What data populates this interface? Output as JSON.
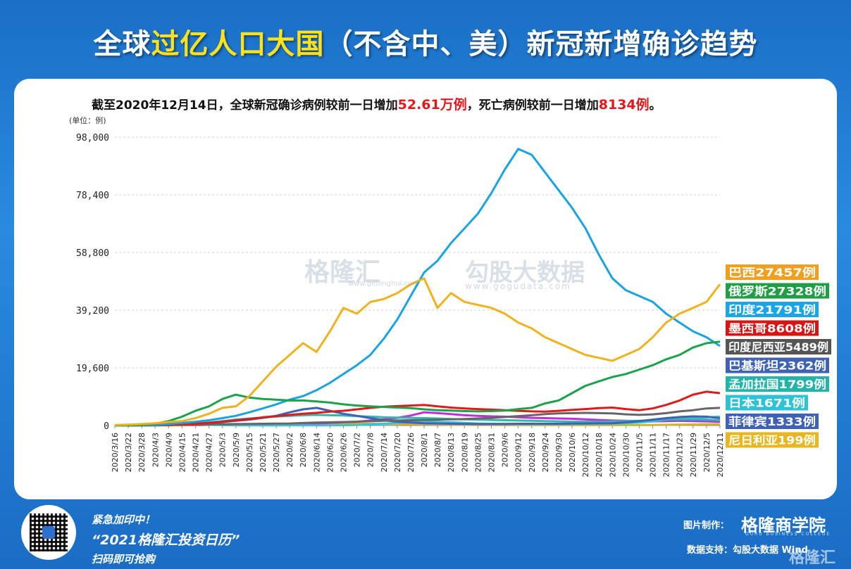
{
  "title": {
    "part1": "全球",
    "highlight": "过亿人口大国",
    "part2": "（不含中、美）新冠新增确诊趋势"
  },
  "summary": {
    "prefix": "截至2020年12月14日，全球新冠确诊病例较前一日增加",
    "cases": "52.61万例",
    "middle": "，死亡病例较前一日增加",
    "deaths": "8134例",
    "suffix": "。"
  },
  "unit_label": "(单位：例)",
  "watermarks": {
    "w1": "格隆汇",
    "w1_sub": "www.gelonghui.com",
    "w2": "勾股大数据",
    "w2_sub": "www.gogudata.com"
  },
  "footer": {
    "line1": "紧急加印中！",
    "line2": "“2021格隆汇投资日历”",
    "line3": "扫码即可抢购",
    "made_by": "图片制作：",
    "brand": "格隆商学院",
    "brand_sub": "GURU BUSINESS COLLEGE",
    "data_support": "数据支持：勾股大数据  Wind",
    "logo": "格隆汇"
  },
  "chart_data": {
    "type": "line",
    "ylim": [
      0,
      98000
    ],
    "yticks": [
      0,
      19600,
      39200,
      58800,
      78400,
      98000
    ],
    "ytick_labels": [
      "0",
      "19,600",
      "39,200",
      "58,800",
      "78,400",
      "98,000"
    ],
    "x_labels": [
      "2020/3/16",
      "2020/3/22",
      "2020/3/28",
      "2020/4/3",
      "2020/4/9",
      "2020/4/15",
      "2020/4/21",
      "2020/4/27",
      "2020/5/3",
      "2020/5/9",
      "2020/5/15",
      "2020/5/21",
      "2020/5/27",
      "2020/6/2",
      "2020/6/8",
      "2020/6/14",
      "2020/6/20",
      "2020/6/26",
      "2020/7/2",
      "2020/7/8",
      "2020/7/14",
      "2020/7/20",
      "2020/7/26",
      "2020/8/1",
      "2020/8/7",
      "2020/8/13",
      "2020/8/19",
      "2020/8/25",
      "2020/8/31",
      "2020/9/6",
      "2020/9/12",
      "2020/9/18",
      "2020/9/24",
      "2020/9/30",
      "2020/10/6",
      "2020/10/12",
      "2020/10/18",
      "2020/10/24",
      "2020/10/30",
      "2020/11/5",
      "2020/11/11",
      "2020/11/17",
      "2020/11/23",
      "2020/11/29",
      "2020/12/5",
      "2020/12/11"
    ],
    "series": [
      {
        "name": "巴西",
        "label": "巴西27457例",
        "color": "#f0b21c",
        "label_bg": "#f0a020",
        "key": "brazil",
        "values": [
          200,
          300,
          500,
          800,
          1200,
          1500,
          2500,
          4000,
          6000,
          6500,
          10000,
          15000,
          20000,
          24000,
          28000,
          25000,
          32000,
          40000,
          38000,
          42000,
          43000,
          45000,
          48000,
          50000,
          40000,
          45000,
          42000,
          41000,
          40000,
          38000,
          35000,
          33000,
          30000,
          28000,
          26000,
          24000,
          23000,
          22000,
          24000,
          26000,
          30000,
          35000,
          38000,
          40000,
          42000,
          48000
        ]
      },
      {
        "name": "俄罗斯",
        "label": "俄罗斯27328例",
        "color": "#1aa34a",
        "label_bg": "#1f9e45",
        "key": "russia",
        "values": [
          10,
          50,
          200,
          600,
          1500,
          3000,
          5000,
          6500,
          9000,
          10500,
          9500,
          9000,
          8800,
          8500,
          8500,
          8200,
          7800,
          7200,
          6800,
          6500,
          6300,
          6100,
          5900,
          5500,
          5200,
          5100,
          4900,
          4800,
          4900,
          5100,
          5600,
          6000,
          7500,
          8500,
          11000,
          13500,
          15000,
          16500,
          17500,
          19000,
          20500,
          22500,
          24000,
          26500,
          28000,
          28500
        ]
      },
      {
        "name": "印度",
        "label": "印度21791例",
        "color": "#1aa3e0",
        "label_bg": "#19a6e6",
        "key": "india",
        "values": [
          10,
          30,
          80,
          200,
          500,
          900,
          1300,
          1800,
          2500,
          3300,
          4500,
          5800,
          7200,
          8800,
          10000,
          12000,
          14500,
          17500,
          20500,
          24000,
          29500,
          36000,
          44000,
          52000,
          56000,
          62000,
          67000,
          72000,
          79000,
          87000,
          94000,
          92000,
          86000,
          80000,
          74000,
          67000,
          58000,
          50000,
          46000,
          44000,
          42000,
          38000,
          35000,
          32000,
          30000,
          27000
        ]
      },
      {
        "name": "墨西哥",
        "label": "墨西哥8608例",
        "color": "#e01919",
        "label_bg": "#d91414",
        "key": "mexico",
        "values": [
          10,
          20,
          50,
          100,
          200,
          400,
          600,
          900,
          1300,
          1800,
          2200,
          2800,
          3200,
          3600,
          4000,
          4300,
          4700,
          5000,
          5500,
          6000,
          6400,
          6600,
          6800,
          7000,
          6500,
          6100,
          5800,
          5600,
          5400,
          5200,
          5000,
          4800,
          4700,
          5000,
          5300,
          5600,
          5900,
          6100,
          5600,
          5200,
          5800,
          7000,
          8500,
          10500,
          11500,
          11000
        ]
      },
      {
        "name": "印度尼西亚",
        "label": "印度尼西亚5489例",
        "color": "#666666",
        "label_bg": "#555555",
        "key": "indonesia",
        "values": [
          10,
          40,
          80,
          120,
          200,
          300,
          350,
          400,
          450,
          500,
          550,
          600,
          650,
          700,
          850,
          1000,
          1100,
          1200,
          1300,
          1450,
          1600,
          1700,
          1800,
          1900,
          2000,
          2100,
          2200,
          2400,
          2600,
          2900,
          3200,
          3500,
          3900,
          4100,
          4200,
          4300,
          4200,
          4100,
          3800,
          3600,
          3800,
          4200,
          4800,
          5200,
          5800,
          6000
        ]
      },
      {
        "name": "巴基斯坦",
        "label": "巴基斯坦2362例",
        "color": "#3f62b8",
        "label_bg": "#3e62b6",
        "key": "pakistan",
        "values": [
          10,
          60,
          120,
          200,
          300,
          450,
          650,
          900,
          1200,
          1600,
          2000,
          2600,
          3300,
          4500,
          5500,
          6000,
          5000,
          4000,
          3300,
          2500,
          1800,
          1300,
          1000,
          800,
          700,
          600,
          550,
          500,
          500,
          550,
          600,
          600,
          600,
          600,
          650,
          700,
          750,
          800,
          1100,
          1500,
          2000,
          2500,
          2900,
          3100,
          3000,
          2500
        ]
      },
      {
        "name": "孟加拉国",
        "label": "孟加拉国1799例",
        "color": "#2fb8ae",
        "label_bg": "#22b3aa",
        "key": "bangladesh",
        "values": [
          5,
          10,
          30,
          80,
          200,
          450,
          700,
          1000,
          1500,
          2000,
          2400,
          2700,
          3000,
          3300,
          3500,
          3600,
          3500,
          3400,
          3200,
          3000,
          2800,
          2700,
          2600,
          2500,
          2400,
          2200,
          2100,
          2000,
          1900,
          1800,
          1700,
          1600,
          1500,
          1400,
          1300,
          1300,
          1300,
          1400,
          1500,
          1600,
          1800,
          2000,
          2100,
          2100,
          2000,
          1800
        ]
      },
      {
        "name": "日本",
        "label": "日本1671例",
        "color": "#36c6d3",
        "label_bg": "#2ec2d6",
        "key": "japan",
        "values": [
          40,
          50,
          80,
          150,
          350,
          500,
          400,
          250,
          150,
          80,
          40,
          30,
          30,
          40,
          50,
          60,
          70,
          100,
          200,
          400,
          600,
          900,
          1300,
          1500,
          1300,
          1100,
          900,
          700,
          600,
          550,
          500,
          480,
          500,
          550,
          550,
          600,
          650,
          700,
          800,
          1000,
          1400,
          2000,
          2300,
          2500,
          2800,
          3000
        ]
      },
      {
        "name": "菲律宾",
        "label": "菲律宾1333例",
        "color": "#c02ed9",
        "label_bg": "#3f62b6",
        "key": "philippines",
        "values": [
          10,
          30,
          80,
          150,
          250,
          250,
          250,
          250,
          250,
          250,
          250,
          300,
          400,
          500,
          600,
          700,
          900,
          1100,
          1300,
          1700,
          2100,
          2600,
          3400,
          4500,
          4200,
          3900,
          3500,
          3300,
          3100,
          3000,
          2800,
          2600,
          2500,
          2400,
          2300,
          2100,
          1900,
          1700,
          1600,
          1500,
          1400,
          1500,
          1600,
          1500,
          1400,
          1300
        ]
      },
      {
        "name": "尼日利亚",
        "label": "尼日利亚199例",
        "color": "#d4b42a",
        "label_bg": "#e8b620",
        "key": "nigeria",
        "values": [
          5,
          10,
          20,
          30,
          50,
          80,
          120,
          180,
          250,
          300,
          300,
          350,
          350,
          400,
          450,
          500,
          550,
          600,
          600,
          600,
          550,
          500,
          450,
          400,
          350,
          300,
          250,
          200,
          180,
          150,
          150,
          150,
          150,
          150,
          150,
          150,
          150,
          150,
          150,
          150,
          200,
          250,
          300,
          350,
          400,
          450
        ]
      }
    ]
  }
}
